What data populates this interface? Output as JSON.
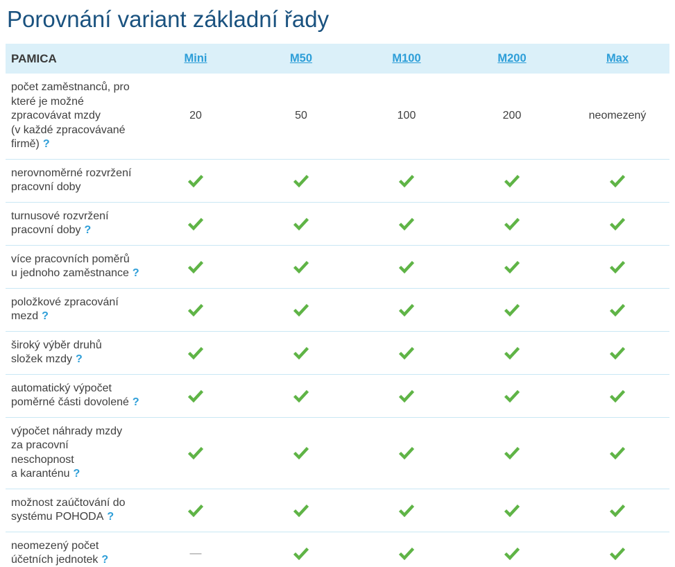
{
  "title": "Porovnání variant základní řady",
  "table": {
    "product": "PAMICA",
    "columns": [
      "Mini",
      "M50",
      "M100",
      "M200",
      "Max"
    ],
    "help_glyph": "?",
    "dash_glyph": "—",
    "rows": [
      {
        "label": "počet zaměstnanců, pro\nkteré je možné\nzpracovávat mzdy\n(v každé zpracovávané\nfirmě)",
        "help": true,
        "cells": [
          {
            "type": "text",
            "value": "20"
          },
          {
            "type": "text",
            "value": "50"
          },
          {
            "type": "text",
            "value": "100"
          },
          {
            "type": "text",
            "value": "200"
          },
          {
            "type": "text",
            "value": "neomezený"
          }
        ]
      },
      {
        "label": "nerovnoměrné rozvržení\npracovní doby",
        "help": false,
        "cells": [
          {
            "type": "check"
          },
          {
            "type": "check"
          },
          {
            "type": "check"
          },
          {
            "type": "check"
          },
          {
            "type": "check"
          }
        ]
      },
      {
        "label": "turnusové rozvržení\npracovní doby",
        "help": true,
        "cells": [
          {
            "type": "check"
          },
          {
            "type": "check"
          },
          {
            "type": "check"
          },
          {
            "type": "check"
          },
          {
            "type": "check"
          }
        ]
      },
      {
        "label": "více pracovních poměrů\nu jednoho zaměstnance",
        "help": true,
        "cells": [
          {
            "type": "check"
          },
          {
            "type": "check"
          },
          {
            "type": "check"
          },
          {
            "type": "check"
          },
          {
            "type": "check"
          }
        ]
      },
      {
        "label": "položkové zpracování\nmezd",
        "help": true,
        "cells": [
          {
            "type": "check"
          },
          {
            "type": "check"
          },
          {
            "type": "check"
          },
          {
            "type": "check"
          },
          {
            "type": "check"
          }
        ]
      },
      {
        "label": "široký výběr druhů\nsložek mzdy",
        "help": true,
        "cells": [
          {
            "type": "check"
          },
          {
            "type": "check"
          },
          {
            "type": "check"
          },
          {
            "type": "check"
          },
          {
            "type": "check"
          }
        ]
      },
      {
        "label": "automatický výpočet\npoměrné části dovolené",
        "help": true,
        "cells": [
          {
            "type": "check"
          },
          {
            "type": "check"
          },
          {
            "type": "check"
          },
          {
            "type": "check"
          },
          {
            "type": "check"
          }
        ]
      },
      {
        "label": "výpočet náhrady mzdy\nza pracovní\nneschopnost\na karanténu",
        "help": true,
        "cells": [
          {
            "type": "check"
          },
          {
            "type": "check"
          },
          {
            "type": "check"
          },
          {
            "type": "check"
          },
          {
            "type": "check"
          }
        ]
      },
      {
        "label": "možnost zaúčtování do\nsystému POHODA",
        "help": true,
        "cells": [
          {
            "type": "check"
          },
          {
            "type": "check"
          },
          {
            "type": "check"
          },
          {
            "type": "check"
          },
          {
            "type": "check"
          }
        ]
      },
      {
        "label": "neomezený počet\núčetních jednotek",
        "help": true,
        "cells": [
          {
            "type": "dash"
          },
          {
            "type": "check"
          },
          {
            "type": "check"
          },
          {
            "type": "check"
          },
          {
            "type": "check"
          }
        ]
      }
    ]
  },
  "colors": {
    "title_blue": "#1a527f",
    "header_bg": "#dbf0f9",
    "link_blue": "#2d9ed8",
    "check_green": "#5fb446",
    "text_dark": "#3f3f3f",
    "separator_blue": "#c9e7f4",
    "dash_gray": "#9a9a9a"
  }
}
